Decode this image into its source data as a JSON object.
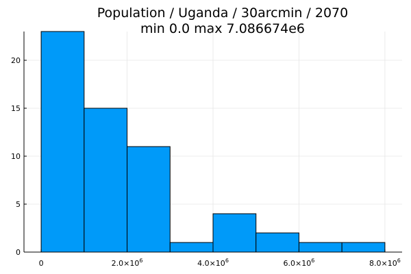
{
  "chart_data": {
    "type": "bar",
    "title": "Population / Uganda / 30arcmin / 2070",
    "subtitle": "min 0.0  max 7.086674e6",
    "xlabel": "",
    "ylabel": "",
    "bin_edges": [
      0,
      1000000,
      2000000,
      3000000,
      4000000,
      5000000,
      6000000,
      7000000,
      8000000
    ],
    "values": [
      23,
      15,
      11,
      1,
      4,
      2,
      1,
      1
    ],
    "xlim": [
      -400000,
      8400000
    ],
    "ylim": [
      0,
      23
    ],
    "x_ticks": [
      {
        "value": 0,
        "base": "0",
        "sup": ""
      },
      {
        "value": 2000000,
        "base": "2.0×10",
        "sup": "6"
      },
      {
        "value": 4000000,
        "base": "4.0×10",
        "sup": "6"
      },
      {
        "value": 6000000,
        "base": "6.0×10",
        "sup": "6"
      },
      {
        "value": 8000000,
        "base": "8.0×10",
        "sup": "6"
      }
    ],
    "y_ticks": [
      {
        "value": 0,
        "label": "0"
      },
      {
        "value": 5,
        "label": "5"
      },
      {
        "value": 10,
        "label": "10"
      },
      {
        "value": 15,
        "label": "15"
      },
      {
        "value": 20,
        "label": "20"
      }
    ],
    "grid": true,
    "legend": "none",
    "bar_color": "#009af9"
  }
}
